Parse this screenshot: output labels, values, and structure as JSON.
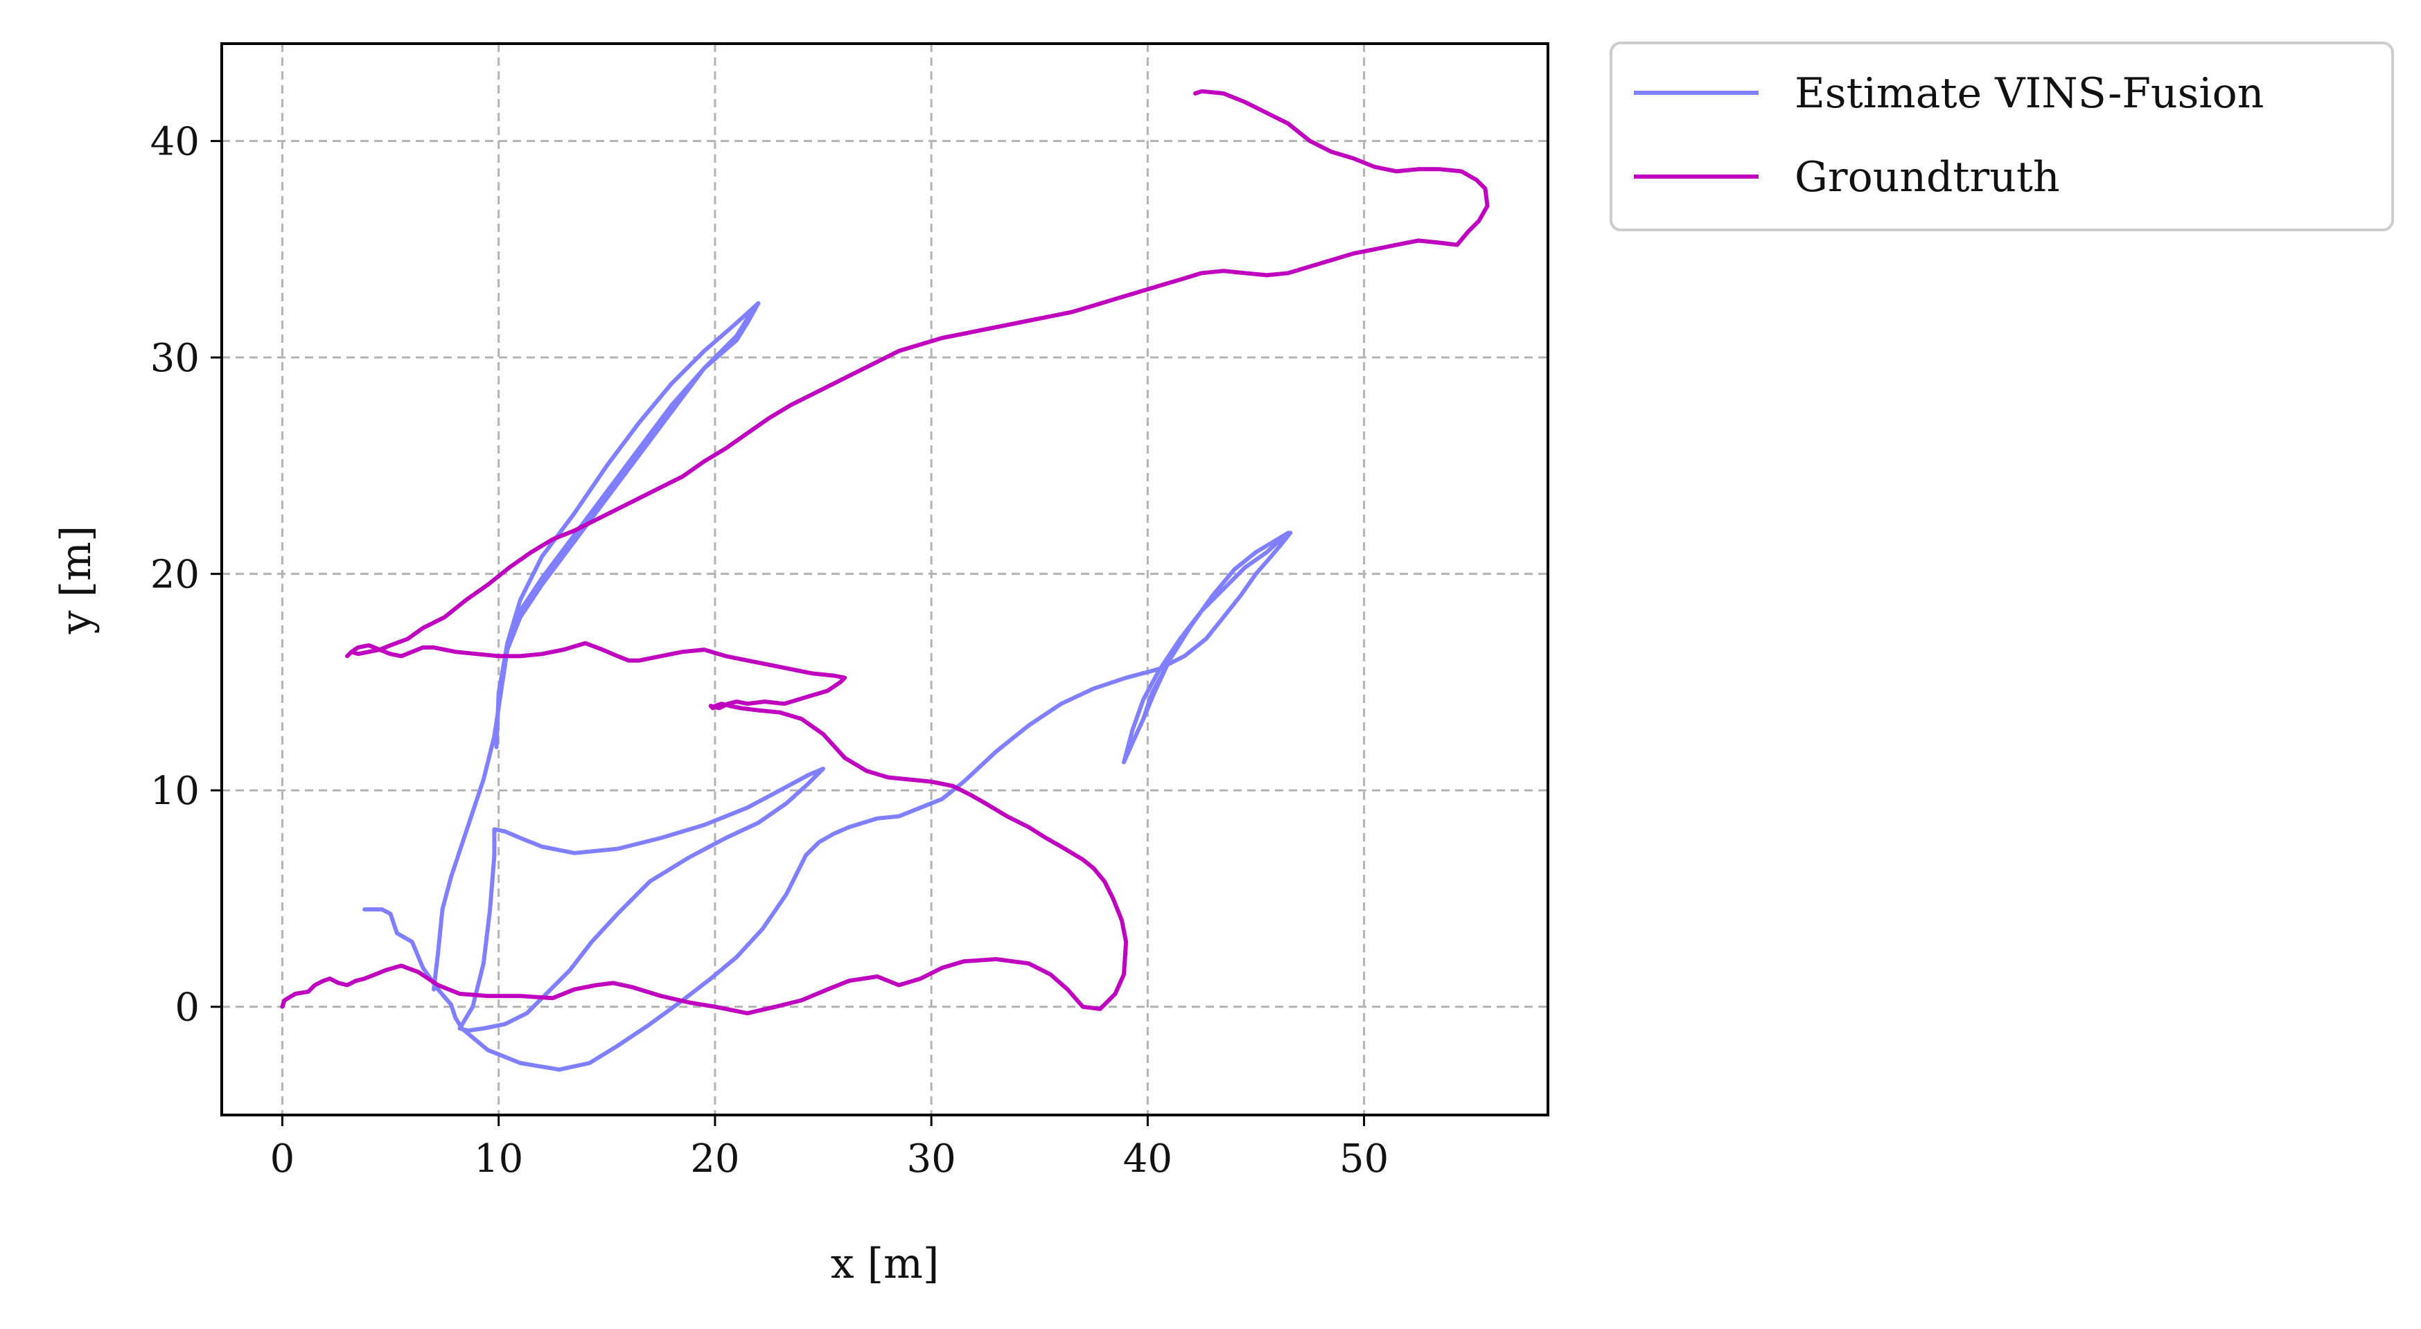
{
  "chart_data": {
    "type": "line",
    "title": "",
    "xlabel": "x [m]",
    "ylabel": "y [m]",
    "xlim": [
      -2.8,
      58.5
    ],
    "ylim": [
      -5.0,
      44.5
    ],
    "xticks": [
      0,
      10,
      20,
      30,
      40,
      50
    ],
    "yticks": [
      0,
      10,
      20,
      30,
      40
    ],
    "xtick_labels": [
      "0",
      "10",
      "20",
      "30",
      "40",
      "50"
    ],
    "ytick_labels": [
      "0",
      "10",
      "20",
      "30",
      "40"
    ],
    "grid": true,
    "legend_position": "outside upper right",
    "series": [
      {
        "name": "Estimate VINS-Fusion",
        "color": "#7f7fff",
        "x": [
          3.8,
          4.6,
          5.0,
          5.3,
          6.0,
          6.5,
          7.2,
          7.8,
          8.0,
          8.3,
          9.5,
          11.0,
          12.8,
          14.2,
          15.5,
          17.0,
          18.5,
          19.8,
          21.0,
          22.2,
          23.3,
          24.2,
          24.8,
          25.5,
          26.2,
          27.5,
          28.5,
          29.5,
          30.5,
          31.5,
          33.0,
          34.5,
          36.0,
          37.5,
          39.0,
          40.5,
          41.7,
          42.7,
          43.5,
          44.3,
          45.0,
          45.7,
          46.2,
          46.6,
          46.0,
          45.0,
          44.0,
          43.0,
          42.0,
          41.0,
          40.3,
          39.8,
          39.3,
          38.9,
          38.9,
          39.3,
          39.8,
          40.5,
          41.5,
          42.5,
          43.5,
          44.5,
          45.5,
          46.5,
          46.0,
          45.0,
          44.0,
          43.0,
          42.0,
          41.0,
          40.2,
          39.8,
          39.3,
          38.9
        ],
        "y": [
          4.5,
          4.5,
          4.3,
          3.4,
          3.0,
          1.8,
          0.8,
          0.1,
          -0.5,
          -1.0,
          -2.0,
          -2.6,
          -2.9,
          -2.6,
          -1.8,
          -0.8,
          0.3,
          1.3,
          2.3,
          3.6,
          5.2,
          7.0,
          7.6,
          8.0,
          8.3,
          8.7,
          8.8,
          9.2,
          9.6,
          10.4,
          11.8,
          13.0,
          14.0,
          14.7,
          15.2,
          15.6,
          16.2,
          17.0,
          18.0,
          19.0,
          20.0,
          20.8,
          21.4,
          21.9,
          21.6,
          21.0,
          20.2,
          19.0,
          17.6,
          16.0,
          14.5,
          13.3,
          12.2,
          11.3,
          11.3,
          12.8,
          14.2,
          15.5,
          17.0,
          18.3,
          19.3,
          20.3,
          21.0,
          21.9,
          21.6,
          21.0,
          20.2,
          19.0,
          17.6,
          16.0,
          14.5,
          13.3,
          12.2,
          11.3
        ]
      },
      {
        "name": "Estimate VINS-Fusion",
        "color": "#7f7fff",
        "x": [
          7.0,
          7.2,
          7.4,
          7.8,
          8.3,
          8.8,
          9.3,
          9.8,
          10.1,
          10.4,
          11.0,
          12.0,
          13.5,
          15.0,
          16.5,
          18.0,
          19.5,
          21.0,
          21.5,
          22.0
        ],
        "y": [
          0.8,
          2.5,
          4.5,
          6.0,
          7.5,
          9.0,
          10.5,
          12.5,
          14.5,
          16.5,
          18.0,
          19.5,
          21.5,
          23.5,
          25.5,
          27.5,
          29.5,
          31.0,
          31.8,
          32.5
        ]
      },
      {
        "name": "Estimate VINS-Fusion",
        "color": "#7f7fff",
        "x": [
          8.2,
          8.8,
          9.3,
          9.6,
          9.8,
          9.8,
          10.3,
          11.0,
          12.0,
          13.5,
          15.5,
          17.5,
          19.5,
          21.5,
          23.0,
          24.3,
          25.0,
          24.3,
          23.3,
          22.0,
          20.5,
          18.8,
          17.0,
          15.5,
          14.3,
          13.3,
          12.3,
          11.3,
          10.3,
          9.3,
          8.6,
          8.2
        ],
        "y": [
          -1.0,
          0.0,
          2.0,
          4.5,
          7.0,
          8.2,
          8.1,
          7.8,
          7.4,
          7.1,
          7.3,
          7.8,
          8.4,
          9.2,
          10.0,
          10.7,
          11.0,
          10.3,
          9.4,
          8.5,
          7.8,
          6.9,
          5.8,
          4.3,
          3.0,
          1.7,
          0.7,
          -0.3,
          -0.8,
          -1.0,
          -1.1,
          -1.0
        ]
      },
      {
        "name": "Estimate VINS-Fusion",
        "color": "#7f7fff",
        "x": [
          10.0,
          10.4,
          11.0,
          12.0,
          13.5,
          15.0,
          16.5,
          18.0,
          19.5,
          21.0,
          21.5,
          22.0,
          21.0,
          19.5,
          18.0,
          16.5,
          15.0,
          13.5,
          12.0,
          11.0,
          10.4,
          10.0,
          9.9
        ],
        "y": [
          14.5,
          16.5,
          18.3,
          19.8,
          21.8,
          23.8,
          25.8,
          27.8,
          29.5,
          30.8,
          31.6,
          32.5,
          31.6,
          30.3,
          28.8,
          27.0,
          25.0,
          22.8,
          20.8,
          18.8,
          16.8,
          14.5,
          12.0
        ]
      }
    ],
    "groundtruth": {
      "name": "Groundtruth",
      "color": "#bf00bf",
      "x": [
        0.0,
        0.1,
        0.6,
        1.2,
        1.5,
        1.9,
        2.2,
        2.6,
        3.0,
        3.4,
        3.8,
        4.3,
        4.8,
        5.5,
        6.3,
        7.2,
        8.2,
        9.5,
        11.0,
        12.5,
        13.5,
        14.5,
        15.3,
        16.2,
        17.5,
        18.8,
        20.0,
        21.5,
        22.8,
        24.0,
        25.2,
        26.2,
        27.5,
        28.5,
        29.5,
        30.5,
        31.5,
        33.0,
        34.5,
        35.5,
        36.3,
        37.0,
        37.8,
        38.5,
        38.9,
        39.0,
        38.8,
        38.4,
        38.0,
        37.5,
        37.0,
        36.5,
        36.0,
        35.3,
        34.5,
        33.5,
        32.5,
        31.8,
        31.0,
        30.0,
        29.0,
        28.0,
        27.0,
        26.0,
        25.0,
        24.0,
        23.0,
        22.0,
        21.2,
        20.7,
        20.3,
        20.0,
        19.9,
        19.8,
        20.2,
        20.6,
        21.0,
        21.5,
        22.3,
        23.2,
        24.2,
        25.2,
        25.8,
        26.0,
        25.5,
        24.5,
        23.5,
        22.5,
        21.5,
        20.5,
        19.5,
        18.5,
        17.5,
        16.5,
        16.0,
        15.5,
        14.8,
        14.0,
        13.0,
        12.0,
        11.0,
        10.0,
        9.0,
        8.0,
        7.0,
        6.5,
        6.0,
        5.5,
        5.0,
        4.5,
        4.0,
        3.5,
        3.2,
        3.0,
        3.2,
        3.5,
        4.0,
        4.5,
        5.0,
        5.8,
        6.5,
        7.5,
        8.5,
        9.5,
        10.5,
        11.5,
        12.5,
        13.5,
        14.5,
        15.5,
        16.5,
        17.5,
        18.5,
        19.5,
        20.5,
        21.5,
        22.5,
        23.5,
        24.5,
        25.5,
        26.5,
        27.5,
        28.5,
        29.5,
        30.5,
        31.5,
        32.5,
        33.5,
        34.5,
        35.5,
        36.5,
        37.5,
        38.5,
        39.5,
        40.5,
        41.5,
        42.5,
        43.5,
        44.5,
        45.5,
        46.5,
        47.5,
        48.5,
        49.5,
        50.5,
        51.5,
        52.5,
        53.5,
        54.3,
        54.8,
        55.3,
        55.7,
        55.6,
        55.2,
        54.5,
        53.5,
        52.5,
        51.5,
        50.5,
        49.5,
        48.5,
        47.5,
        46.5,
        45.5,
        44.5,
        43.5,
        42.5,
        42.2
      ],
      "y": [
        0.0,
        0.3,
        0.6,
        0.7,
        1.0,
        1.2,
        1.3,
        1.1,
        1.0,
        1.2,
        1.3,
        1.5,
        1.7,
        1.9,
        1.6,
        1.0,
        0.6,
        0.5,
        0.5,
        0.4,
        0.8,
        1.0,
        1.1,
        0.9,
        0.5,
        0.2,
        0.0,
        -0.3,
        0.0,
        0.3,
        0.8,
        1.2,
        1.4,
        1.0,
        1.3,
        1.8,
        2.1,
        2.2,
        2.0,
        1.5,
        0.8,
        0.0,
        -0.1,
        0.6,
        1.5,
        3.0,
        4.0,
        5.0,
        5.8,
        6.4,
        6.8,
        7.1,
        7.4,
        7.8,
        8.3,
        8.8,
        9.4,
        9.8,
        10.2,
        10.4,
        10.5,
        10.6,
        10.9,
        11.5,
        12.6,
        13.3,
        13.6,
        13.7,
        13.8,
        13.9,
        14.0,
        13.9,
        13.8,
        13.9,
        13.8,
        14.0,
        14.1,
        14.0,
        14.1,
        14.0,
        14.3,
        14.6,
        15.0,
        15.2,
        15.3,
        15.4,
        15.6,
        15.8,
        16.0,
        16.2,
        16.5,
        16.4,
        16.2,
        16.0,
        16.0,
        16.2,
        16.5,
        16.8,
        16.5,
        16.3,
        16.2,
        16.2,
        16.3,
        16.4,
        16.6,
        16.6,
        16.4,
        16.2,
        16.3,
        16.5,
        16.7,
        16.6,
        16.4,
        16.2,
        16.4,
        16.3,
        16.4,
        16.5,
        16.7,
        17.0,
        17.5,
        18.0,
        18.8,
        19.5,
        20.3,
        21.0,
        21.6,
        22.0,
        22.5,
        23.0,
        23.5,
        24.0,
        24.5,
        25.2,
        25.8,
        26.5,
        27.2,
        27.8,
        28.3,
        28.8,
        29.3,
        29.8,
        30.3,
        30.6,
        30.9,
        31.1,
        31.3,
        31.5,
        31.7,
        31.9,
        32.1,
        32.4,
        32.7,
        33.0,
        33.3,
        33.6,
        33.9,
        34.0,
        33.9,
        33.8,
        33.9,
        34.2,
        34.5,
        34.8,
        35.0,
        35.2,
        35.4,
        35.3,
        35.2,
        35.8,
        36.3,
        37.0,
        37.8,
        38.2,
        38.6,
        38.7,
        38.7,
        38.6,
        38.8,
        39.2,
        39.5,
        40.0,
        40.8,
        41.3,
        41.8,
        42.2,
        42.3,
        42.2
      ]
    }
  },
  "legend": {
    "items": [
      {
        "label": "Estimate VINS-Fusion",
        "color": "#7f7fff"
      },
      {
        "label": "Groundtruth",
        "color": "#bf00bf"
      }
    ]
  }
}
